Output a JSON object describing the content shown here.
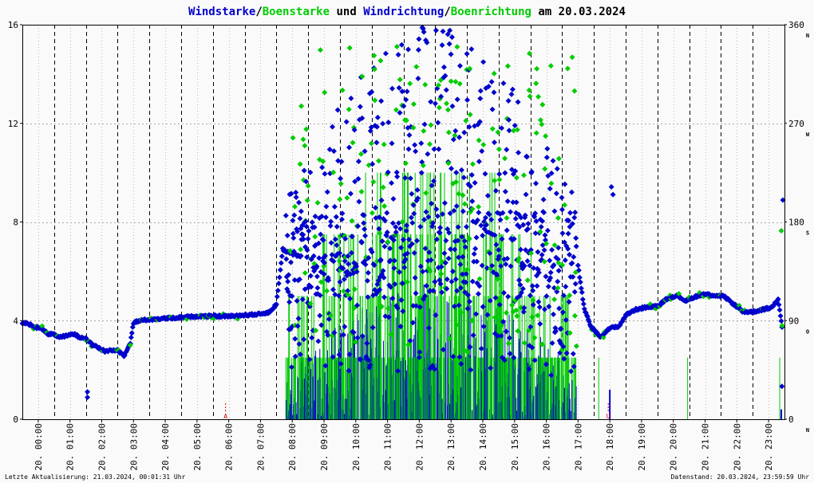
{
  "chart_data": {
    "type": "scatter",
    "title_parts": [
      {
        "text": "Windstarke",
        "color": "#0000cc"
      },
      {
        "text": "/",
        "color": "#000000"
      },
      {
        "text": "Boenstarke",
        "color": "#00cc00"
      },
      {
        "text": " und ",
        "color": "#000000"
      },
      {
        "text": "Windrichtung",
        "color": "#0000cc"
      },
      {
        "text": "/",
        "color": "#000000"
      },
      {
        "text": "Boenrichtung",
        "color": "#00cc00"
      },
      {
        "text": " am 20.03.2024",
        "color": "#000000"
      }
    ],
    "ylim": [
      0,
      16
    ],
    "y2lim": [
      0,
      360
    ],
    "xlim": [
      0,
      24
    ],
    "y_ticks": [
      "0",
      "4",
      "8",
      "12",
      "16"
    ],
    "y2_ticks": [
      "0",
      "90",
      "180",
      "270",
      "360"
    ],
    "direction_labels": [
      {
        "text": "N",
        "value": 0
      },
      {
        "text": "O",
        "value": 90
      },
      {
        "text": "S",
        "value": 180
      },
      {
        "text": "W",
        "value": 270
      },
      {
        "text": "N",
        "value": 360
      }
    ],
    "x_ticks": [
      "20. 00:00",
      "20. 01:00",
      "20. 02:00",
      "20. 03:00",
      "20. 04:00",
      "20. 05:00",
      "20. 06:00",
      "20. 07:00",
      "20. 08:00",
      "20. 09:00",
      "20. 10:00",
      "20. 11:00",
      "20. 12:00",
      "20. 13:00",
      "20. 14:00",
      "20. 15:00",
      "20. 16:00",
      "20. 17:00",
      "20. 18:00",
      "20. 19:00",
      "20. 20:00",
      "20. 21:00",
      "20. 22:00",
      "20. 23:00"
    ],
    "markers": [
      {
        "text": "A",
        "hour": 6.4,
        "color": "#cc0000"
      },
      {
        "text": "U",
        "hour": 18.45,
        "color": "#cc0000"
      }
    ],
    "series": [
      {
        "name": "Windstarke",
        "color": "#0000cc"
      },
      {
        "name": "Boenstarke",
        "color": "#00cc00"
      },
      {
        "name": "Windrichtung",
        "color": "#0000cc"
      },
      {
        "name": "Boenrichtung",
        "color": "#00cc00"
      }
    ],
    "direction_trace": [
      [
        0.0,
        88
      ],
      [
        0.2,
        87
      ],
      [
        0.4,
        84
      ],
      [
        0.6,
        83
      ],
      [
        0.8,
        78
      ],
      [
        1.0,
        77
      ],
      [
        1.2,
        75
      ],
      [
        1.4,
        76
      ],
      [
        1.6,
        78
      ],
      [
        1.8,
        75
      ],
      [
        2.0,
        74
      ],
      [
        2.2,
        68
      ],
      [
        2.4,
        65
      ],
      [
        2.6,
        62
      ],
      [
        2.8,
        63
      ],
      [
        3.0,
        63
      ],
      [
        3.2,
        58
      ],
      [
        3.4,
        70
      ],
      [
        3.5,
        88
      ],
      [
        3.7,
        90
      ],
      [
        4.0,
        91
      ],
      [
        4.5,
        92
      ],
      [
        5.0,
        93
      ],
      [
        5.5,
        94
      ],
      [
        6.0,
        94
      ],
      [
        6.5,
        94
      ],
      [
        7.0,
        95
      ],
      [
        7.5,
        96
      ],
      [
        7.8,
        98
      ],
      [
        8.0,
        105
      ],
      [
        8.2,
        155
      ],
      [
        8.4,
        152
      ],
      [
        8.6,
        150
      ],
      [
        8.8,
        148
      ],
      [
        17.5,
        140
      ],
      [
        17.7,
        100
      ],
      [
        17.9,
        85
      ],
      [
        18.2,
        75
      ],
      [
        18.5,
        83
      ],
      [
        18.8,
        85
      ],
      [
        19.0,
        95
      ],
      [
        19.3,
        100
      ],
      [
        19.6,
        102
      ],
      [
        20.0,
        103
      ],
      [
        20.3,
        110
      ],
      [
        20.6,
        113
      ],
      [
        20.9,
        108
      ],
      [
        21.2,
        112
      ],
      [
        21.5,
        114
      ],
      [
        21.8,
        113
      ],
      [
        22.1,
        112
      ],
      [
        22.4,
        105
      ],
      [
        22.7,
        98
      ],
      [
        23.0,
        98
      ],
      [
        23.3,
        100
      ],
      [
        23.6,
        102
      ],
      [
        23.8,
        110
      ],
      [
        23.95,
        80
      ]
    ]
  },
  "footer": {
    "left": "Letzte Aktualisierung: 21.03.2024, 00:01:31 Uhr",
    "right": "Datenstand: 20.03.2024, 23:59:59 Uhr"
  }
}
